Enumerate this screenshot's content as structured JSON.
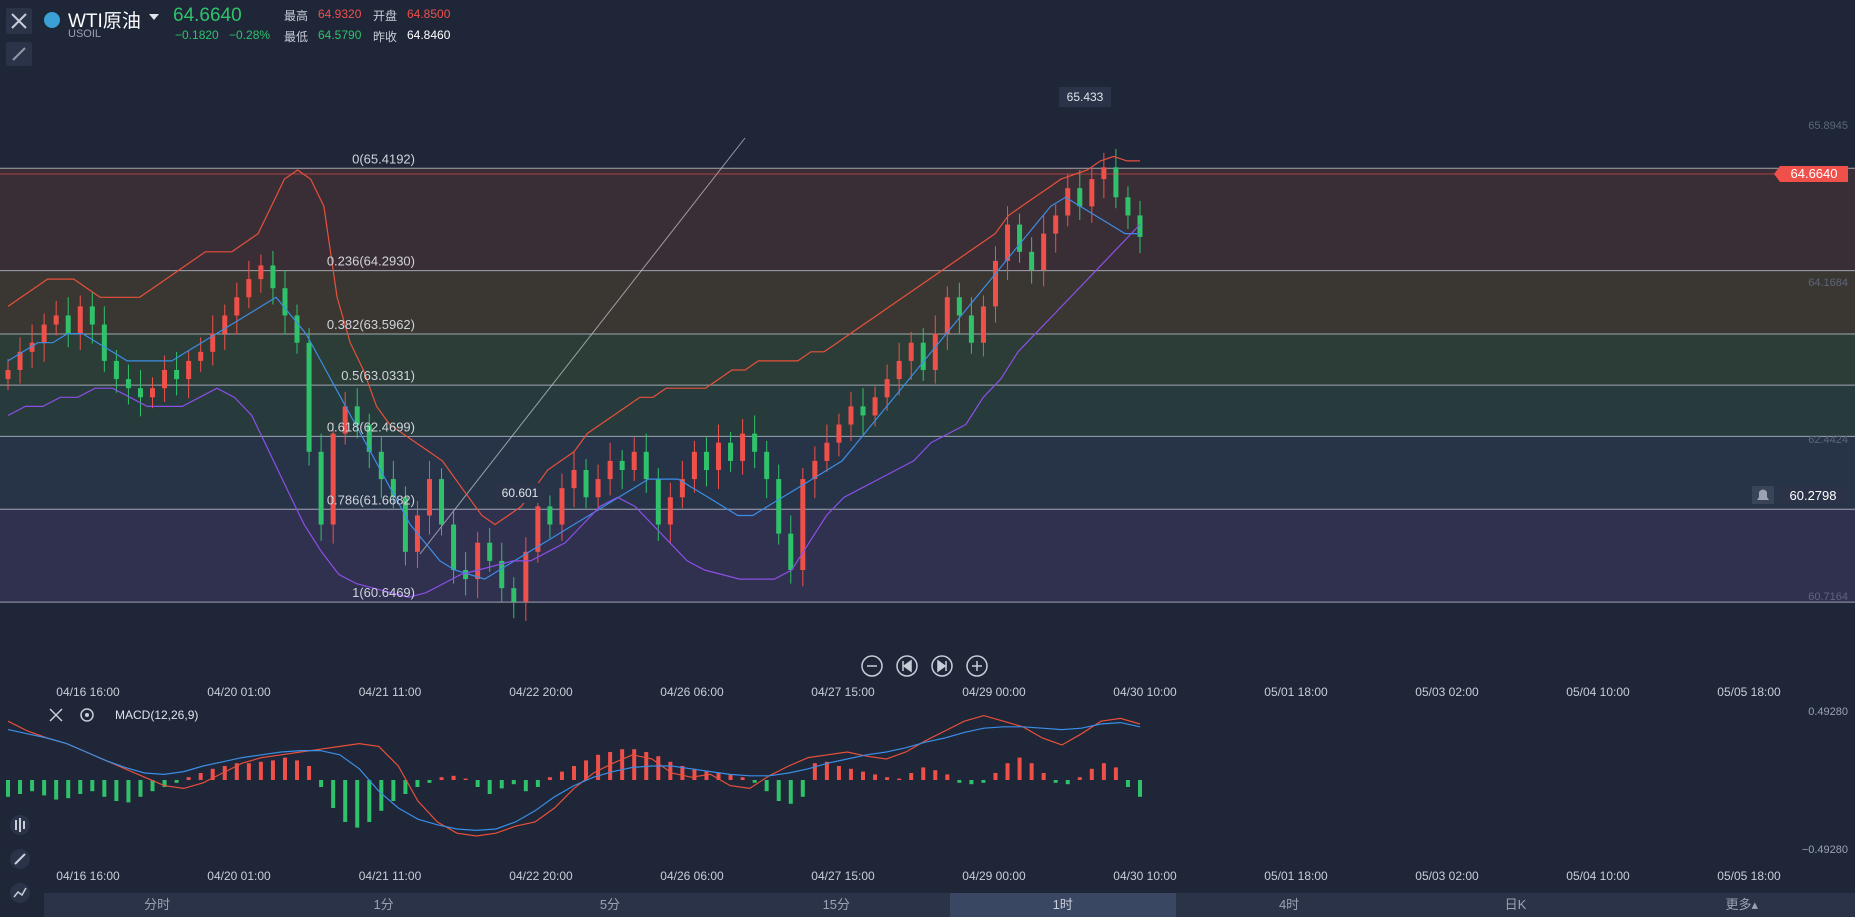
{
  "header": {
    "symbol_name": "WTI原油",
    "symbol_code": "USOIL",
    "last_price": "64.6640",
    "change": "−0.1820",
    "change_pct": "−0.28%",
    "stats": {
      "high_label": "最高",
      "high_value": "64.9320",
      "open_label": "开盘",
      "open_value": "64.8500",
      "low_label": "最低",
      "low_value": "64.5790",
      "prev_close_label": "昨收",
      "prev_close_value": "64.8460"
    }
  },
  "colors": {
    "up": "#f0504a",
    "down": "#2fc26a",
    "background": "#1e2638",
    "boll_upper": "#e8503a",
    "boll_mid": "#3a8ee6",
    "boll_lower": "#8c4fe6",
    "macd_dif": "#e8503a",
    "macd_dea": "#3a8ee6"
  },
  "chart_data": [
    {
      "type": "candlestick",
      "symbol": "USOIL",
      "interval": "1时",
      "x_ticks": [
        "04/16 16:00",
        "04/20 01:00",
        "04/21 11:00",
        "04/22 20:00",
        "04/26 06:00",
        "04/27 15:00",
        "04/29 00:00",
        "04/30 10:00",
        "05/01 18:00",
        "05/03 02:00",
        "05/04 10:00",
        "05/05 18:00"
      ],
      "y_axis_labels": [
        "65.8945",
        "64.1684",
        "62.4424",
        "60.7164"
      ],
      "ylim": [
        59.9,
        66.5
      ],
      "current_price_label": "64.6640",
      "crosshair_price_label": "60.2798",
      "max_marker": "65.433",
      "min_marker": "60.601",
      "fibonacci": [
        {
          "label": "0(65.4192)",
          "value": 65.4192
        },
        {
          "label": "0.236(64.2930)",
          "value": 64.293
        },
        {
          "label": "0.382(63.5962)",
          "value": 63.5962
        },
        {
          "label": "0.5(63.0331)",
          "value": 63.0331
        },
        {
          "label": "0.618(62.4699)",
          "value": 62.4699
        },
        {
          "label": "0.786(61.6682)",
          "value": 61.6682
        },
        {
          "label": "1(60.6469)",
          "value": 60.6469
        }
      ],
      "close_series": [
        63.2,
        63.4,
        63.5,
        63.7,
        63.8,
        63.6,
        63.9,
        63.7,
        63.3,
        63.1,
        63.0,
        62.9,
        63.0,
        63.2,
        63.1,
        63.3,
        63.4,
        63.6,
        63.8,
        64.0,
        64.2,
        64.35,
        64.1,
        63.8,
        63.5,
        62.3,
        61.5,
        62.5,
        62.8,
        62.6,
        62.3,
        62.0,
        61.8,
        61.2,
        61.6,
        62.0,
        61.5,
        61.0,
        60.9,
        61.3,
        61.1,
        60.8,
        60.65,
        61.2,
        61.7,
        61.5,
        61.9,
        62.1,
        61.8,
        62.0,
        62.2,
        62.1,
        62.3,
        62.0,
        61.5,
        61.8,
        62.0,
        62.3,
        62.1,
        62.4,
        62.2,
        62.5,
        62.3,
        62.0,
        61.4,
        61.0,
        62.0,
        62.2,
        62.4,
        62.6,
        62.8,
        62.7,
        62.9,
        63.1,
        63.3,
        63.5,
        63.2,
        63.6,
        64.0,
        63.8,
        63.5,
        63.9,
        64.4,
        64.8,
        64.5,
        64.3,
        64.7,
        64.9,
        65.2,
        65.0,
        65.3,
        65.43,
        65.1,
        64.9,
        64.664
      ],
      "series": [
        {
          "name": "boll_upper",
          "values": [
            63.9,
            64.0,
            64.1,
            64.2,
            64.2,
            64.2,
            64.1,
            64.0,
            64.0,
            64.0,
            64.0,
            64.1,
            64.2,
            64.3,
            64.4,
            64.5,
            64.5,
            64.5,
            64.6,
            64.7,
            65.0,
            65.3,
            65.4,
            65.3,
            65.0,
            64.0,
            63.5,
            63.2,
            62.8,
            62.6,
            62.5,
            62.4,
            62.3,
            62.2,
            62.0,
            61.8,
            61.6,
            61.5,
            61.6,
            61.7,
            61.9,
            62.1,
            62.2,
            62.3,
            62.5,
            62.6,
            62.7,
            62.8,
            62.9,
            62.9,
            63.0,
            63.0,
            63.0,
            63.0,
            63.1,
            63.2,
            63.2,
            63.3,
            63.3,
            63.3,
            63.3,
            63.4,
            63.4,
            63.5,
            63.6,
            63.7,
            63.8,
            63.9,
            64.0,
            64.1,
            64.2,
            64.3,
            64.4,
            64.5,
            64.6,
            64.7,
            64.9,
            65.0,
            65.1,
            65.2,
            65.3,
            65.35,
            65.4,
            65.5,
            65.55,
            65.5,
            65.5
          ]
        },
        {
          "name": "boll_mid",
          "values": [
            63.3,
            63.4,
            63.5,
            63.5,
            63.6,
            63.6,
            63.5,
            63.4,
            63.3,
            63.3,
            63.3,
            63.3,
            63.4,
            63.5,
            63.6,
            63.7,
            63.8,
            63.9,
            64.0,
            63.8,
            63.6,
            63.3,
            63.0,
            62.7,
            62.4,
            62.1,
            61.8,
            61.5,
            61.3,
            61.1,
            61.0,
            60.95,
            60.9,
            61.0,
            61.1,
            61.2,
            61.3,
            61.4,
            61.5,
            61.6,
            61.7,
            61.8,
            61.9,
            62.0,
            62.0,
            62.0,
            61.9,
            61.8,
            61.7,
            61.6,
            61.6,
            61.7,
            61.8,
            61.9,
            62.0,
            62.1,
            62.2,
            62.4,
            62.6,
            62.8,
            63.0,
            63.2,
            63.4,
            63.6,
            63.8,
            64.0,
            64.2,
            64.4,
            64.6,
            64.8,
            65.0,
            65.1,
            65.0,
            64.9,
            64.8,
            64.7,
            64.7
          ]
        },
        {
          "name": "boll_lower",
          "values": [
            62.7,
            62.8,
            62.8,
            62.9,
            62.9,
            63.0,
            63.0,
            62.9,
            62.8,
            62.8,
            62.8,
            62.9,
            63.0,
            62.9,
            62.7,
            62.3,
            61.9,
            61.5,
            61.2,
            60.95,
            60.85,
            60.8,
            60.75,
            60.7,
            60.75,
            60.85,
            60.95,
            61.0,
            61.05,
            61.1,
            61.1,
            61.2,
            61.3,
            61.5,
            61.7,
            61.8,
            61.7,
            61.5,
            61.3,
            61.1,
            61.0,
            60.95,
            60.9,
            60.9,
            60.9,
            61.0,
            61.3,
            61.6,
            61.8,
            61.9,
            62.0,
            62.1,
            62.2,
            62.4,
            62.5,
            62.6,
            62.9,
            63.1,
            63.4,
            63.6,
            63.8,
            64.0,
            64.2,
            64.4,
            64.6,
            64.8
          ]
        }
      ]
    },
    {
      "type": "macd",
      "title": "MACD(12,26,9)",
      "x_ticks": [
        "04/16 16:00",
        "04/20 01:00",
        "04/21 11:00",
        "04/22 20:00",
        "04/26 06:00",
        "04/27 15:00",
        "04/29 00:00",
        "04/30 10:00",
        "05/01 18:00",
        "05/03 02:00",
        "05/04 10:00",
        "05/05 18:00"
      ],
      "y_axis_labels": [
        "0.49280",
        "−0.49280"
      ],
      "ylim": [
        -0.5,
        0.5
      ],
      "histogram": [
        -0.12,
        -0.1,
        -0.08,
        -0.11,
        -0.14,
        -0.13,
        -0.1,
        -0.08,
        -0.12,
        -0.15,
        -0.16,
        -0.12,
        -0.08,
        -0.05,
        -0.02,
        0.02,
        0.05,
        0.08,
        0.1,
        0.12,
        0.12,
        0.13,
        0.14,
        0.16,
        0.14,
        0.1,
        -0.05,
        -0.2,
        -0.3,
        -0.34,
        -0.3,
        -0.22,
        -0.15,
        -0.1,
        -0.05,
        -0.02,
        0.02,
        0.03,
        0.01,
        -0.05,
        -0.1,
        -0.06,
        -0.03,
        -0.08,
        -0.05,
        0.02,
        0.06,
        0.1,
        0.14,
        0.18,
        0.2,
        0.22,
        0.22,
        0.2,
        0.17,
        0.13,
        0.1,
        0.08,
        0.06,
        0.05,
        0.04,
        0.02,
        -0.02,
        -0.08,
        -0.15,
        -0.17,
        -0.12,
        0.12,
        0.13,
        0.1,
        0.08,
        0.06,
        0.04,
        0.02,
        0.01,
        0.05,
        0.09,
        0.07,
        0.04,
        -0.02,
        -0.03,
        -0.02,
        0.05,
        0.12,
        0.16,
        0.12,
        0.05,
        -0.02,
        -0.03,
        0.02,
        0.08,
        0.12,
        0.09,
        -0.05,
        -0.12
      ],
      "series": [
        {
          "name": "DIF",
          "values": [
            0.42,
            0.35,
            0.3,
            0.26,
            0.2,
            0.14,
            0.08,
            0.02,
            -0.04,
            -0.06,
            -0.02,
            0.05,
            0.12,
            0.16,
            0.18,
            0.2,
            0.22,
            0.24,
            0.26,
            0.24,
            0.1,
            -0.15,
            -0.3,
            -0.38,
            -0.4,
            -0.38,
            -0.33,
            -0.3,
            -0.2,
            -0.06,
            0.05,
            0.12,
            0.18,
            0.15,
            0.05,
            0.02,
            0.04,
            -0.04,
            -0.06,
            0.03,
            0.1,
            0.16,
            0.18,
            0.2,
            0.17,
            0.15,
            0.2,
            0.28,
            0.35,
            0.42,
            0.46,
            0.42,
            0.38,
            0.3,
            0.25,
            0.33,
            0.42,
            0.44,
            0.4
          ]
        },
        {
          "name": "DEA",
          "values": [
            0.36,
            0.33,
            0.3,
            0.26,
            0.2,
            0.14,
            0.09,
            0.05,
            0.04,
            0.06,
            0.1,
            0.13,
            0.16,
            0.18,
            0.2,
            0.21,
            0.21,
            0.18,
            0.08,
            -0.08,
            -0.2,
            -0.28,
            -0.32,
            -0.35,
            -0.36,
            -0.35,
            -0.3,
            -0.22,
            -0.12,
            -0.04,
            0.02,
            0.06,
            0.09,
            0.1,
            0.1,
            0.08,
            0.06,
            0.04,
            0.03,
            0.03,
            0.05,
            0.08,
            0.12,
            0.15,
            0.18,
            0.2,
            0.23,
            0.27,
            0.3,
            0.34,
            0.37,
            0.38,
            0.38,
            0.37,
            0.36,
            0.37,
            0.4,
            0.41,
            0.38
          ]
        }
      ]
    }
  ],
  "chart_controls": {
    "zoom_out": "−",
    "prev": "⏮",
    "next": "⏭",
    "zoom_in": "+"
  },
  "periods": [
    "分时",
    "1分",
    "5分",
    "15分",
    "1时",
    "4时",
    "日K",
    "更多▴"
  ],
  "active_period_index": 4
}
